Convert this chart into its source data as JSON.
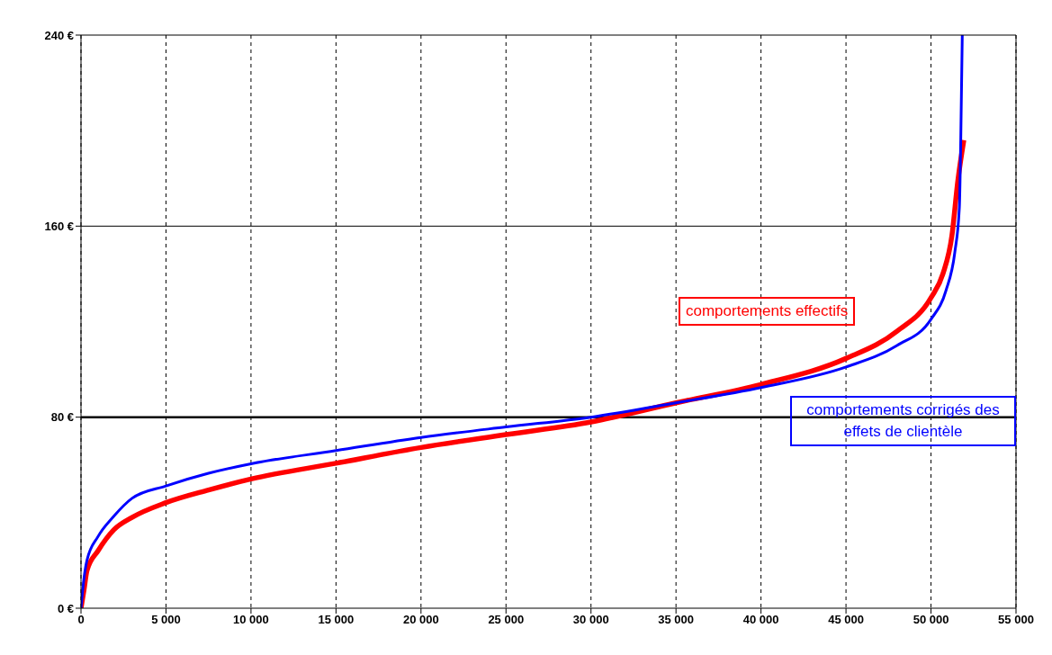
{
  "chart_data": {
    "type": "line",
    "xlim": [
      0,
      55000
    ],
    "xticks": [
      {
        "value": 0,
        "label": "0"
      },
      {
        "value": 5000,
        "label": "5 000"
      },
      {
        "value": 10000,
        "label": "10 000"
      },
      {
        "value": 15000,
        "label": "15 000"
      },
      {
        "value": 20000,
        "label": "20 000"
      },
      {
        "value": 25000,
        "label": "25 000"
      },
      {
        "value": 30000,
        "label": "30 000"
      },
      {
        "value": 35000,
        "label": "35 000"
      },
      {
        "value": 40000,
        "label": "40 000"
      },
      {
        "value": 45000,
        "label": "45 000"
      },
      {
        "value": 50000,
        "label": "50 000"
      },
      {
        "value": 55000,
        "label": "55 000"
      }
    ],
    "ylim": [
      0,
      240
    ],
    "yticks": [
      {
        "value": 0,
        "label": "0 €"
      },
      {
        "value": 80,
        "label": "80 €"
      },
      {
        "value": 160,
        "label": "160 €"
      },
      {
        "value": 240,
        "label": "240 €"
      }
    ],
    "grid": "x",
    "legend": false,
    "marker": "none",
    "line_style": "solid",
    "ref_lines": [
      {
        "axis": "y",
        "value": 80,
        "label": null,
        "color": "#000000"
      },
      {
        "axis": "y",
        "value": 160,
        "label": null,
        "color": "#000000"
      }
    ],
    "series": [
      {
        "name": "comportements effectifs",
        "color": "#ff0000",
        "x": [
          0,
          175,
          350,
          1000,
          1930,
          3000,
          5000,
          7500,
          10000,
          15000,
          20000,
          25000,
          30000,
          35000,
          40000,
          45000,
          48000,
          50000,
          50700,
          51230,
          51580,
          51930
        ],
        "values": [
          0,
          7.6,
          15.7,
          24,
          32.8,
          38,
          44.2,
          49.5,
          54.1,
          60.7,
          67.3,
          72.7,
          78,
          86,
          93.7,
          104.6,
          116,
          130,
          140,
          156,
          179,
          196
        ]
      },
      {
        "name": "comportements corrigés des effets de clientèle",
        "color": "#0000ff",
        "x": [
          0,
          175,
          350,
          1000,
          1930,
          3000,
          5000,
          7500,
          10000,
          15000,
          20000,
          25000,
          30000,
          35000,
          40000,
          45000,
          48000,
          50000,
          50880,
          51400,
          51670,
          51750,
          51840
        ],
        "values": [
          0,
          12.5,
          20,
          30,
          38.5,
          46,
          51.2,
          56.5,
          60.5,
          66,
          71.5,
          75.9,
          80,
          86,
          92.4,
          101,
          110,
          121,
          133,
          149,
          168,
          196,
          240
        ]
      }
    ]
  }
}
